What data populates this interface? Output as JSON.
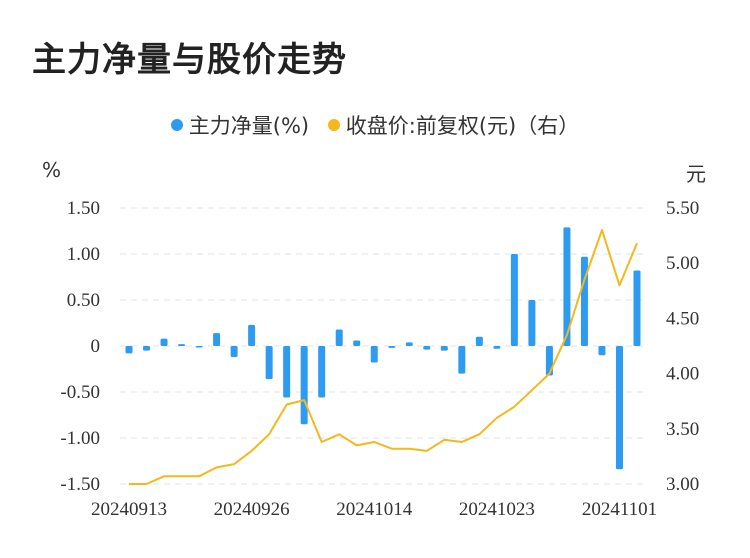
{
  "page": {
    "title": "主力净量与股价走势"
  },
  "chart_data": {
    "type": "bar+line",
    "title": "主力净量与股价走势",
    "left_unit": "%",
    "right_unit": "元",
    "legend": [
      {
        "name": "主力净量(%)",
        "color": "#2d9cf0"
      },
      {
        "name": "收盘价:前复权(元)（右）",
        "color": "#f5b81c"
      }
    ],
    "left_axis": {
      "ylim": [
        -1.5,
        1.5
      ],
      "ticks": [
        "1.50",
        "1.00",
        "0.50",
        "0",
        "-0.50",
        "-1.00",
        "-1.50"
      ]
    },
    "right_axis": {
      "ylim": [
        3.0,
        5.5
      ],
      "ticks": [
        "5.50",
        "5.00",
        "4.50",
        "4.00",
        "3.50",
        "3.00"
      ]
    },
    "x_tick_labels": [
      "20240913",
      "20240926",
      "20241014",
      "20241023",
      "20241101"
    ],
    "x_tick_indices": [
      0,
      7,
      14,
      21,
      28
    ],
    "series": [
      {
        "name": "主力净量(%)",
        "kind": "bar",
        "color": "#2d9cf0",
        "values": [
          -0.08,
          -0.05,
          0.08,
          0.02,
          0.0,
          0.14,
          -0.12,
          0.23,
          -0.36,
          -0.56,
          -0.85,
          -0.56,
          0.18,
          0.06,
          -0.18,
          -0.02,
          0.04,
          -0.04,
          -0.05,
          -0.3,
          0.1,
          -0.03,
          1.0,
          0.5,
          -0.32,
          1.29,
          0.97,
          -0.1,
          -1.34,
          0.82
        ]
      },
      {
        "name": "收盘价:前复权(元)（右）",
        "kind": "line",
        "color": "#f5b81c",
        "values": [
          3.0,
          3.0,
          3.07,
          3.07,
          3.07,
          3.15,
          3.18,
          3.3,
          3.45,
          3.72,
          3.76,
          3.38,
          3.45,
          3.35,
          3.38,
          3.32,
          3.32,
          3.3,
          3.4,
          3.38,
          3.45,
          3.6,
          3.7,
          3.85,
          4.0,
          4.35,
          4.85,
          5.3,
          4.8,
          5.18
        ]
      }
    ]
  }
}
